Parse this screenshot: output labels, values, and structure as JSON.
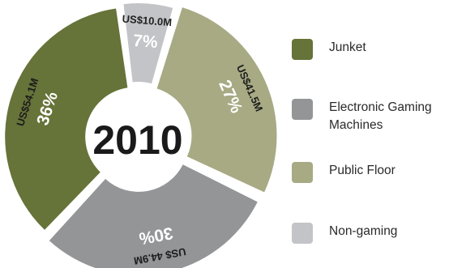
{
  "chart_data": {
    "type": "pie",
    "center_label": "2010",
    "slices": [
      {
        "name": "Non-gaming",
        "value": 10.0,
        "value_label": "US$10.0M",
        "percent_label": "7%",
        "color": "#c3c4c7"
      },
      {
        "name": "Public Floor",
        "value": 41.5,
        "value_label": "US$41.5M",
        "percent_label": "27%",
        "color": "#a7aa83"
      },
      {
        "name": "Electronic Gaming Machines",
        "value": 44.9,
        "value_label": "US$ 44.9M",
        "percent_label": "30%",
        "color": "#939597"
      },
      {
        "name": "Junket",
        "value": 54.1,
        "value_label": "US$54.1M",
        "percent_label": "36%",
        "color": "#667339"
      }
    ],
    "legend": [
      {
        "label": "Junket",
        "color": "#667339"
      },
      {
        "label": "Electronic Gaming\nMachines",
        "color": "#939597"
      },
      {
        "label": "Public Floor",
        "color": "#a7aa83"
      },
      {
        "label": "Non-gaming",
        "color": "#c3c4c7"
      }
    ],
    "legend_position": "right"
  }
}
